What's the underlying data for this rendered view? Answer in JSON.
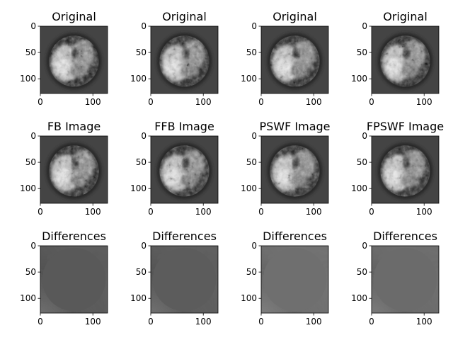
{
  "figure": {
    "rows": [
      {
        "panel_kind": "image",
        "titles": [
          "Original",
          "Original",
          "Original",
          "Original"
        ]
      },
      {
        "panel_kind": "image",
        "titles": [
          "FB Image",
          "FFB Image",
          "PSWF Image",
          "FPSWF Image"
        ]
      },
      {
        "panel_kind": "difference",
        "titles": [
          "Differences",
          "Differences",
          "Differences",
          "Differences"
        ]
      }
    ],
    "difference_backgrounds": [
      "#595959",
      "#5c5c5c",
      "#6f6f6f",
      "#6b6b6b"
    ],
    "image_background": "#444444"
  },
  "chart_data": {
    "type": "heatmap",
    "colormap": "gray",
    "grid": false,
    "image_size": [
      128,
      128
    ],
    "xlim": [
      0,
      128
    ],
    "ylim": [
      128,
      0
    ],
    "x_ticks": [
      "0",
      "100"
    ],
    "y_ticks": [
      "0",
      "50",
      "100"
    ],
    "panels": 12
  }
}
